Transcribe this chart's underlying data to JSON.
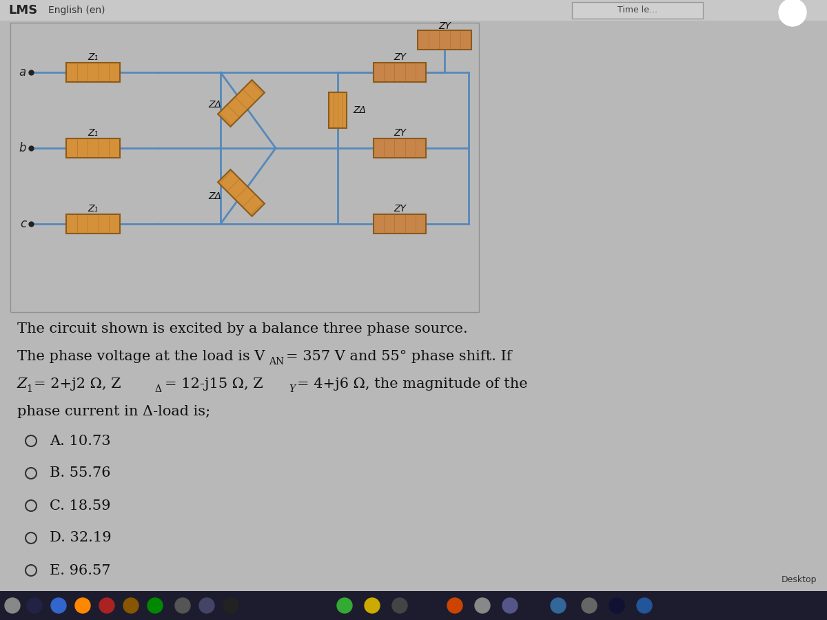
{
  "bg_color": "#b8b8b8",
  "header_bg": "#c8c8c8",
  "circuit_area_bg": "#b0b0b0",
  "resistor_fill": "#d4913a",
  "resistor_fill2": "#c8854a",
  "resistor_edge": "#8b5a1a",
  "wire_color": "#5588bb",
  "text_color": "#111111",
  "header_text_lms": "LMS",
  "header_text_english": "English (en)",
  "node_labels": [
    "a",
    "b",
    "c"
  ],
  "z1_label": "Z₁",
  "za_label": "ZΔ",
  "zy_label": "ZY",
  "q_line1": "The circuit shown is excited by a balance three phase source.",
  "q_line2a": "The phase voltage at the load is V",
  "q_line2b": "AN",
  "q_line2c": "= 357 V and 55° phase shift. If",
  "q_line3a": "Z",
  "q_line3b": "1",
  "q_line3c": "= 2+j2 Ω, Z",
  "q_line3d": "Δ",
  "q_line3e": "= 12-j15 Ω, Z",
  "q_line3f": "Y",
  "q_line3g": "= 4+j6 Ω, the magnitude of the",
  "q_line4": "phase current in Δ-load is;",
  "options": [
    "A. 10.73",
    "B. 55.76",
    "C. 18.59",
    "D. 32.19",
    "E. 96.57"
  ],
  "taskbar_color": "#1c1c2e",
  "desktop_text": "Desktop"
}
